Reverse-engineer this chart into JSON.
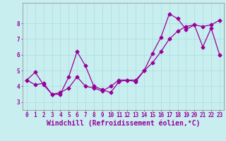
{
  "xlabel": "Windchill (Refroidissement éolien,°C)",
  "ylabel": "",
  "xlim": [
    -0.5,
    23.5
  ],
  "ylim": [
    2.5,
    9.3
  ],
  "yticks": [
    3,
    4,
    5,
    6,
    7,
    8
  ],
  "xticks": [
    0,
    1,
    2,
    3,
    4,
    5,
    6,
    7,
    8,
    9,
    10,
    11,
    12,
    13,
    14,
    15,
    16,
    17,
    18,
    19,
    20,
    21,
    22,
    23
  ],
  "line1_x": [
    0,
    1,
    2,
    3,
    4,
    5,
    6,
    7,
    8,
    9,
    10,
    11,
    12,
    13,
    14,
    15,
    16,
    17,
    18,
    19,
    20,
    21,
    22,
    23
  ],
  "line1_y": [
    4.4,
    4.9,
    4.1,
    3.5,
    3.5,
    4.6,
    6.2,
    5.3,
    4.0,
    3.8,
    3.6,
    4.3,
    4.4,
    4.3,
    5.0,
    6.1,
    7.1,
    8.6,
    8.3,
    7.6,
    7.9,
    6.5,
    7.7,
    6.0
  ],
  "line2_x": [
    0,
    1,
    2,
    3,
    4,
    5,
    6,
    7,
    8,
    9,
    10,
    11,
    12,
    13,
    14,
    15,
    16,
    17,
    18,
    19,
    20,
    21,
    22,
    23
  ],
  "line2_y": [
    4.4,
    4.1,
    4.2,
    3.5,
    3.6,
    3.9,
    4.6,
    4.0,
    3.9,
    3.7,
    4.0,
    4.4,
    4.4,
    4.4,
    5.0,
    5.5,
    6.2,
    7.0,
    7.5,
    7.8,
    7.9,
    7.8,
    7.9,
    8.2
  ],
  "line_color": "#990099",
  "bg_color": "#c8eef0",
  "grid_color": "#aadddd",
  "marker": "D",
  "marker_size": 2.5,
  "line_width": 0.9,
  "tick_labelsize": 5.5,
  "xlabel_fontsize": 7.0
}
